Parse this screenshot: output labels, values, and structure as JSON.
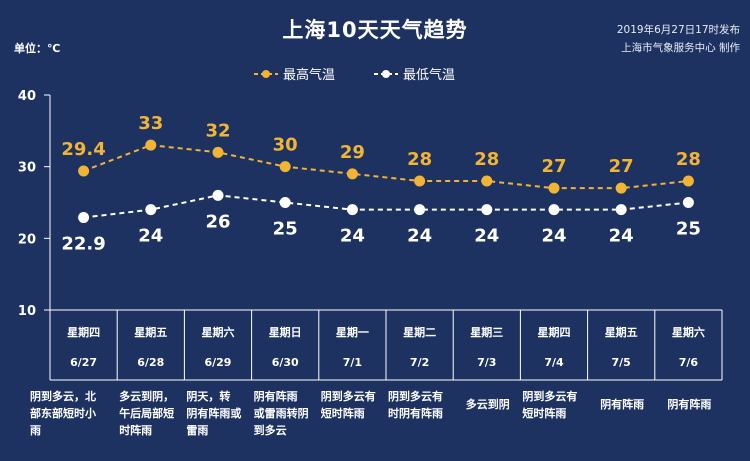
{
  "title": "上海10天天气趋势",
  "publisher": {
    "line1": "2019年6月27日17时发布",
    "line2": "上海市气象服务中心 制作"
  },
  "unit_label": "单位：℃",
  "legend": {
    "high": "最高气温",
    "low": "最低气温"
  },
  "colors": {
    "background": "#1e3262",
    "high": "#f1b435",
    "low": "#ffffff",
    "grid": "#ffffff"
  },
  "chart_data": {
    "type": "line",
    "y_ticks": [
      "40",
      "30",
      "20",
      "10"
    ],
    "ylim": [
      10,
      40
    ],
    "categories": [
      "6/27",
      "6/28",
      "6/29",
      "6/30",
      "7/1",
      "7/2",
      "7/3",
      "7/4",
      "7/5",
      "7/6"
    ],
    "weekdays": [
      "星期四",
      "星期五",
      "星期六",
      "星期日",
      "星期一",
      "星期二",
      "星期三",
      "星期四",
      "星期五",
      "星期六"
    ],
    "series": [
      {
        "name": "最高气温",
        "values": [
          29.4,
          33,
          32,
          30,
          29,
          28,
          28,
          27,
          27,
          28
        ],
        "labels": [
          "29.4",
          "33",
          "32",
          "30",
          "29",
          "28",
          "28",
          "27",
          "27",
          "28"
        ]
      },
      {
        "name": "最低气温",
        "values": [
          22.9,
          24,
          26,
          25,
          24,
          24,
          24,
          24,
          24,
          25
        ],
        "labels": [
          "22.9",
          "24",
          "26",
          "25",
          "24",
          "24",
          "24",
          "24",
          "24",
          "25"
        ]
      }
    ]
  },
  "weather_desc": [
    [
      "阴到多云，北",
      "部东部短时小",
      "雨"
    ],
    [
      "多云到阴，",
      "午后局部短",
      "时阵雨"
    ],
    [
      "阴天，转",
      "阴有阵雨或",
      "雷雨"
    ],
    [
      "阴有阵雨",
      "或雷雨转阴",
      "到多云"
    ],
    [
      "阴到多云有",
      "短时阵雨"
    ],
    [
      "阴到多云有",
      "时阴有阵雨"
    ],
    [
      "多云到阴"
    ],
    [
      "阴到多云有",
      "短时阵雨"
    ],
    [
      "阴有阵雨"
    ],
    [
      "阴有阵雨"
    ]
  ]
}
